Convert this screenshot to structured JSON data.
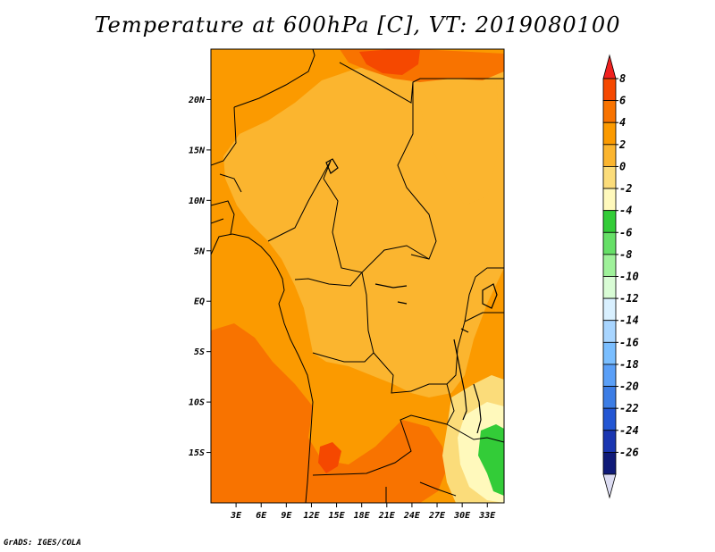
{
  "title": "Temperature at 600hPa [C], VT: 2019080100",
  "credit": "GrADS: IGES/COLA",
  "map": {
    "lon_range": [
      0,
      35
    ],
    "lat_range": [
      -20,
      25
    ],
    "lat_ticks": [
      {
        "value": 20,
        "label": "20N"
      },
      {
        "value": 15,
        "label": "15N"
      },
      {
        "value": 10,
        "label": "10N"
      },
      {
        "value": 5,
        "label": "5N"
      },
      {
        "value": 0,
        "label": "EQ"
      },
      {
        "value": -5,
        "label": "5S"
      },
      {
        "value": -10,
        "label": "10S"
      },
      {
        "value": -15,
        "label": "15S"
      }
    ],
    "lon_ticks": [
      {
        "value": 3,
        "label": "3E"
      },
      {
        "value": 6,
        "label": "6E"
      },
      {
        "value": 9,
        "label": "9E"
      },
      {
        "value": 12,
        "label": "12E"
      },
      {
        "value": 15,
        "label": "15E"
      },
      {
        "value": 18,
        "label": "18E"
      },
      {
        "value": 21,
        "label": "21E"
      },
      {
        "value": 24,
        "label": "24E"
      },
      {
        "value": 27,
        "label": "27E"
      },
      {
        "value": 30,
        "label": "30E"
      },
      {
        "value": 33,
        "label": "33E"
      }
    ]
  },
  "colorbar": {
    "levels": [
      "8",
      "6",
      "4",
      "2",
      "0",
      "-2",
      "-4",
      "-6",
      "-8",
      "-10",
      "-12",
      "-14",
      "-16",
      "-18",
      "-20",
      "-22",
      "-24",
      "-26"
    ],
    "colors": [
      "#f0211f",
      "#f54800",
      "#f87300",
      "#fb9a00",
      "#fbb52f",
      "#fbdc7a",
      "#fff9bc",
      "#33cc38",
      "#66df67",
      "#9ff19a",
      "#d9fcd5",
      "#d9f0ff",
      "#a8d5ff",
      "#7abeff",
      "#5a9ff7",
      "#3c7de5",
      "#2356d3",
      "#1a36b1",
      "#0f1a78",
      "#dcdcf2"
    ]
  }
}
